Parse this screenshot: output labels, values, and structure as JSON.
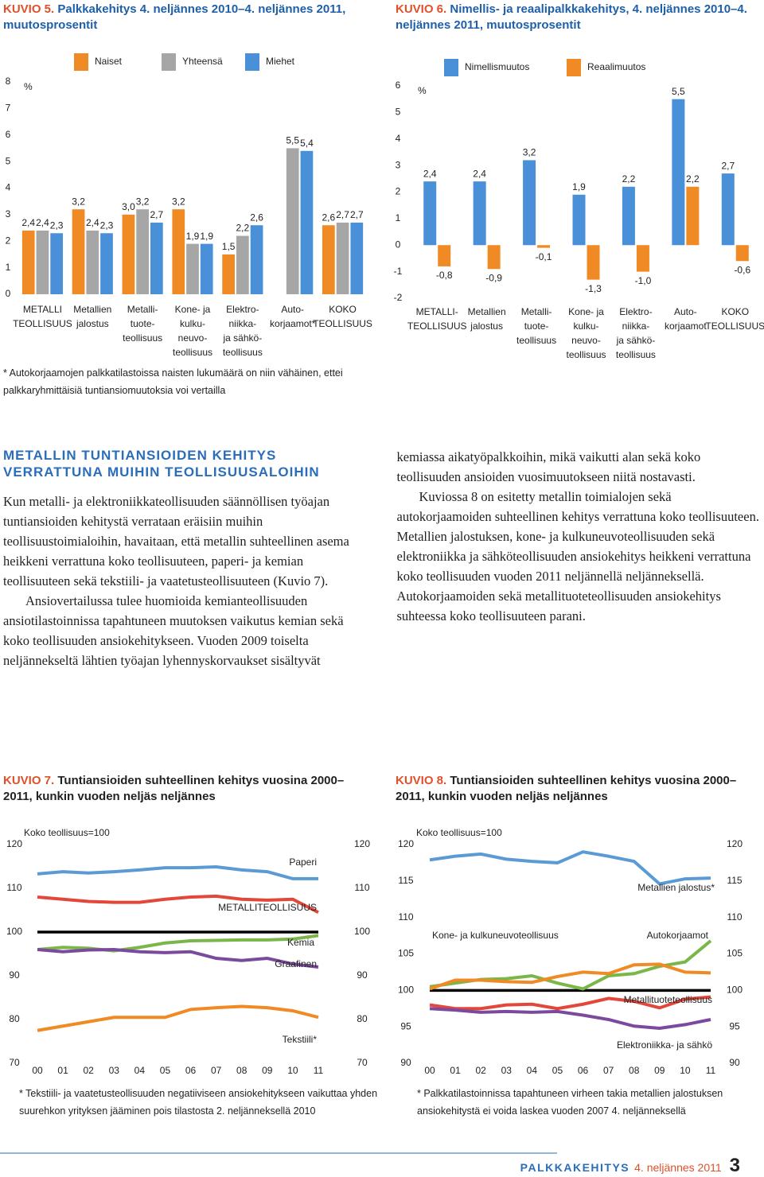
{
  "chart_data": [
    {
      "type": "bar",
      "label": "KUVIO 5.",
      "title": "Palkkakehitys 4. neljännes 2010–4. neljännes 2011, muutosprosentit",
      "unit": "%",
      "categories": [
        [
          "METALLI",
          "TEOLLISUUS"
        ],
        [
          "Metallien",
          "jalostus"
        ],
        [
          "Metalli-",
          "tuote-",
          "teollisuus"
        ],
        [
          "Kone- ja",
          "kulku-",
          "neuvo-",
          "teollisuus"
        ],
        [
          "Elektro-",
          "niikka-",
          "ja sähkö-",
          "teollisuus"
        ],
        [
          "Auto-",
          "korjaamot*"
        ],
        [
          "KOKO",
          "TEOLLISUUS"
        ]
      ],
      "series": [
        {
          "name": "Naiset",
          "color": "#f08a24",
          "values": [
            2.4,
            3.2,
            3.0,
            3.2,
            1.5,
            null,
            2.6
          ],
          "value_labels": [
            "2,4",
            "3,2",
            "3,0",
            "3,2",
            "1,5",
            null,
            "2,6"
          ]
        },
        {
          "name": "Yhteensä",
          "color": "#a6a6a6",
          "values": [
            2.4,
            2.4,
            3.2,
            1.9,
            2.2,
            5.5,
            2.7
          ],
          "value_labels": [
            "2,4",
            "2,4",
            "3,2",
            "1,9",
            "2,2",
            "5,5",
            "2,7"
          ]
        },
        {
          "name": "Miehet",
          "color": "#4a90d9",
          "values": [
            2.3,
            2.3,
            2.7,
            1.9,
            2.6,
            5.4,
            2.7
          ],
          "value_labels": [
            "2,3",
            "2,3",
            "2,7",
            "1,9",
            "2,6",
            "5,4",
            "2,7"
          ]
        }
      ],
      "ylim": [
        0,
        8
      ],
      "yticks": [
        0,
        1,
        2,
        3,
        4,
        5,
        6,
        7,
        8
      ],
      "grid": false,
      "note": "* Autokorjaamojen palkkatilastoissa naisten lukumäärä on niin vähäinen, ettei palkkaryhmittäisiä tuntiansiomuutoksia voi vertailla"
    },
    {
      "type": "bar",
      "label": "KUVIO 6.",
      "title": "Nimellis- ja reaalipalkkakehitys, 4. neljännes 2010–4. neljännes 2011, muutosprosentit",
      "unit": "%",
      "categories": [
        [
          "METALLI-",
          "TEOLLISUUS"
        ],
        [
          "Metallien",
          "jalostus"
        ],
        [
          "Metalli-",
          "tuote-",
          "teollisuus"
        ],
        [
          "Kone- ja",
          "kulku-",
          "neuvo-",
          "teollisuus"
        ],
        [
          "Elektro-",
          "niikka-",
          "ja sähkö-",
          "teollisuus"
        ],
        [
          "Auto-",
          "korjaamot"
        ],
        [
          "KOKO",
          "TEOLLISUUS"
        ]
      ],
      "series": [
        {
          "name": "Nimellismuutos",
          "color": "#4a90d9",
          "values": [
            2.4,
            2.4,
            3.2,
            1.9,
            2.2,
            5.5,
            2.7
          ],
          "value_labels": [
            "2,4",
            "2,4",
            "3,2",
            "1,9",
            "2,2",
            "5,5",
            "2,7"
          ]
        },
        {
          "name": "Reaalimuutos",
          "color": "#f08a24",
          "values": [
            -0.8,
            -0.9,
            -0.1,
            -1.3,
            -1.0,
            2.2,
            -0.6
          ],
          "value_labels": [
            "-0,8",
            "-0,9",
            "-0,1",
            "-1,3",
            "-1,0",
            "2,2",
            "-0,6"
          ]
        }
      ],
      "ylim": [
        -2,
        6
      ],
      "yticks": [
        -2,
        -1,
        0,
        1,
        2,
        3,
        4,
        5,
        6
      ],
      "grid": false
    },
    {
      "type": "line",
      "label": "KUVIO 7.",
      "title": "Tuntiansioiden suhteellinen kehitys vuosina 2000–2011, kunkin vuoden neljäs neljännes",
      "categories": [
        "00",
        "01",
        "02",
        "03",
        "04",
        "05",
        "06",
        "07",
        "08",
        "09",
        "10",
        "11"
      ],
      "series": [
        {
          "name": "Koko teollisuus=100",
          "color": "#000000",
          "values": [
            100,
            100,
            100,
            100,
            100,
            100,
            100,
            100,
            100,
            100,
            100,
            100
          ]
        },
        {
          "name": "Paperi",
          "color": "#5b9bd5",
          "values": [
            113.3,
            113.8,
            113.5,
            113.8,
            114.2,
            114.7,
            114.7,
            114.9,
            114.2,
            113.8,
            112.2,
            112.2
          ]
        },
        {
          "name": "METALLITEOLLISUUS",
          "color": "#e3473a",
          "values": [
            108,
            107.5,
            107,
            106.8,
            106.8,
            107.5,
            108,
            108.2,
            107.5,
            107.3,
            107.5,
            104.5
          ]
        },
        {
          "name": "Kemia",
          "color": "#7ab648",
          "values": [
            96,
            96.5,
            96.3,
            95.7,
            96.5,
            97.5,
            98,
            98.1,
            98.2,
            98.2,
            98.4,
            99.2
          ]
        },
        {
          "name": "Graafinen",
          "color": "#7b4a9e",
          "values": [
            96,
            95.5,
            95.9,
            96,
            95.5,
            95.3,
            95.5,
            94,
            93.5,
            94,
            92.7,
            92
          ]
        },
        {
          "name": "Tekstiili*",
          "color": "#f08a24",
          "values": [
            77.5,
            78.5,
            79.5,
            80.5,
            80.5,
            80.5,
            82.3,
            82.7,
            83,
            82.7,
            82,
            80.5
          ]
        }
      ],
      "ylim": [
        70,
        120
      ],
      "yticks": [
        70,
        80,
        90,
        100,
        110,
        120
      ],
      "grid": false,
      "note": "* Tekstiili- ja vaatetusteollisuuden negatiiviseen ansiokehitykseen vaikuttaa yhden suurehkon yrityksen jääminen pois tilastosta 2. neljänneksellä 2010"
    },
    {
      "type": "line",
      "label": "KUVIO 8.",
      "title": "Tuntiansioiden suhteellinen kehitys vuosina 2000–2011, kunkin vuoden neljäs neljännes",
      "categories": [
        "00",
        "01",
        "02",
        "03",
        "04",
        "05",
        "06",
        "07",
        "08",
        "09",
        "10",
        "11"
      ],
      "series": [
        {
          "name": "Koko teollisuus=100",
          "color": "#000000",
          "values": [
            100,
            100,
            100,
            100,
            100,
            100,
            100,
            100,
            100,
            100,
            100,
            100
          ]
        },
        {
          "name": "Metallien jalostus*",
          "color": "#5b9bd5",
          "values": [
            117.9,
            118.4,
            118.7,
            118,
            117.7,
            117.5,
            119,
            118.4,
            117.7,
            114.6,
            115.3,
            115.4
          ]
        },
        {
          "name": "Kone- ja kulkuneuvoteollisuus",
          "color": "#7ab648",
          "values": [
            100.5,
            101,
            101.5,
            101.6,
            102,
            101,
            100.2,
            102,
            102.3,
            103.3,
            103.9,
            106.8
          ]
        },
        {
          "name": "Autokorjaamot",
          "color": "#f08a24",
          "values": [
            100.2,
            101.4,
            101.4,
            101.2,
            101.1,
            101.9,
            102.5,
            102.3,
            103.5,
            103.6,
            102.5,
            102.4
          ]
        },
        {
          "name": "Metallituoteteollisuus",
          "color": "#e3473a",
          "values": [
            98,
            97.5,
            97.5,
            98,
            98.1,
            97.5,
            98.1,
            98.9,
            98.5,
            97.6,
            98.8,
            99.1
          ]
        },
        {
          "name": "Elektroniikka- ja sähkö",
          "color": "#7b4a9e",
          "values": [
            97.5,
            97.3,
            97,
            97.1,
            97,
            97.1,
            96.6,
            96,
            95.1,
            94.8,
            95.3,
            96
          ]
        }
      ],
      "ylim": [
        90,
        120
      ],
      "yticks": [
        90,
        95,
        100,
        105,
        110,
        115,
        120
      ],
      "grid": false,
      "note": "* Palkkatilastoinnissa tapahtuneen virheen takia metallien jalostuksen ansiokehitystä ei voida laskea vuoden 2007 4. neljänneksellä"
    }
  ],
  "article": {
    "heading": "METALLIN TUNTIANSIOIDEN KEHITYS VERRATTUNA MUIHIN TEOLLISUUSALOIHIN",
    "paragraphs": [
      "Kun metalli- ja elektroniikkateollisuuden säännöllisen työajan tuntiansioiden kehitystä verrataan eräisiin muihin teollisuustoimialoihin, havaitaan, että metallin suhteellinen asema heikkeni verrattuna koko teollisuuteen, paperi- ja kemian teollisuuteen sekä tekstiili- ja vaatetusteollisuuteen (Kuvio 7).",
      "Ansiovertailussa tulee huomioida kemianteollisuuden ansiotilastoinnissa tapahtuneen muutoksen vaikutus kemian sekä koko teollisuuden ansiokehitykseen. Vuoden 2009 toiselta neljännekseltä lähtien työajan lyhennyskorvaukset sisältyvät kemiassa aikatyöpalkkoihin, mikä vaikutti alan sekä koko teollisuuden ansioiden vuosimuutokseen niitä nostavasti.",
      "Kuviossa 8 on esitetty metallin toimialojen sekä autokorjaamoiden suhteellinen kehitys verrattuna koko teollisuuteen. Metallien jalostuksen, kone- ja kulkuneuvoteollisuuden sekä elektroniikka ja sähköteollisuuden ansiokehitys heikkeni verrattuna koko teollisuuden vuoden 2011 neljännellä neljänneksellä. Autokorjaamoiden sekä metallituoteteollisuuden ansiokehitys suhteessa koko teollisuuteen parani."
    ]
  },
  "footer": {
    "publication": "PALKKAKEHITYS",
    "issue": "4. neljännes 2011",
    "page": "3"
  }
}
